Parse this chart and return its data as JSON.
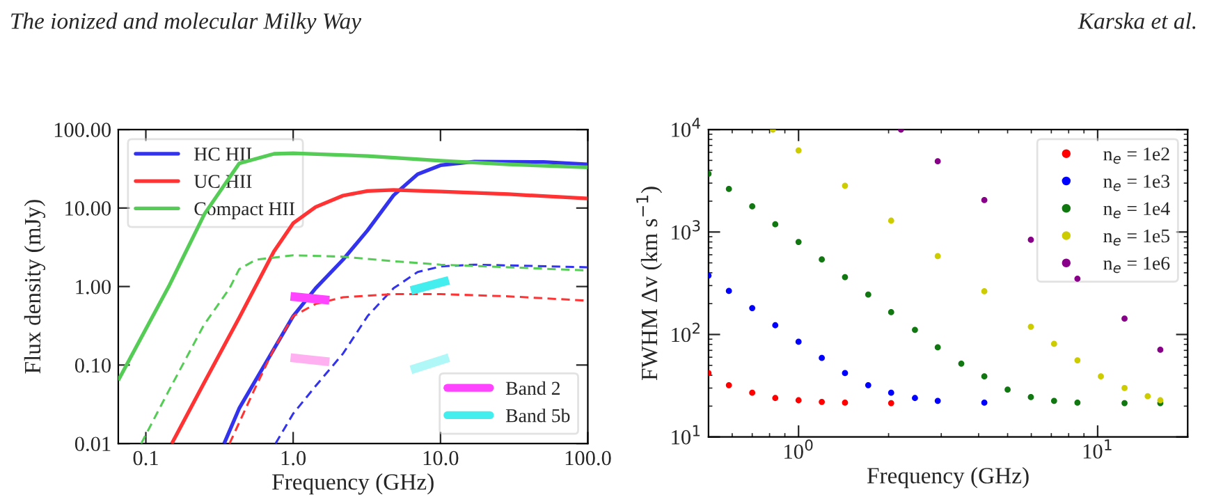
{
  "chart_data": [
    {
      "type": "line",
      "annotations": [
        "The ionized and molecular Milky Way"
      ],
      "xlabel": "Frequency (GHz)",
      "ylabel": "Flux density (mJy)",
      "log": "xy",
      "xlim": [
        0.065,
        100
      ],
      "ylim": [
        0.01,
        100
      ],
      "xticks": [
        {
          "value": 0.1,
          "label": "0.1"
        },
        {
          "value": 1,
          "label": "1.0"
        },
        {
          "value": 10,
          "label": "10.0"
        },
        {
          "value": 100,
          "label": "100.0"
        }
      ],
      "yticks": [
        {
          "value": 0.01,
          "label": "0.01"
        },
        {
          "value": 0.1,
          "label": "0.10"
        },
        {
          "value": 1,
          "label": "1.00"
        },
        {
          "value": 10,
          "label": "10.00"
        },
        {
          "value": 100,
          "label": "100.00"
        }
      ],
      "grid": false,
      "legend": "top left",
      "series": [
        {
          "name": "HC HII",
          "color": "#3333ee",
          "line_style": "solid",
          "x": [
            0.34,
            0.43,
            0.74,
            1.0,
            1.42,
            2.18,
            3.2,
            4.8,
            7.0,
            10,
            17,
            50,
            100
          ],
          "values": [
            0.01,
            0.028,
            0.16,
            0.42,
            0.95,
            2.2,
            5.2,
            14.5,
            27,
            35,
            39,
            38.6,
            36
          ]
        },
        {
          "name": "UC HII",
          "color": "#ff3333",
          "line_style": "solid",
          "x": [
            0.15,
            0.247,
            0.43,
            0.74,
            1.0,
            1.42,
            2.18,
            3.2,
            4.8,
            10,
            29,
            100
          ],
          "values": [
            0.01,
            0.058,
            0.4,
            2.8,
            6.4,
            10.3,
            14.4,
            16.5,
            17,
            16.2,
            15,
            13.2
          ]
        },
        {
          "name": "Compact HII",
          "color": "#55cc55",
          "line_style": "solid",
          "x": [
            0.065,
            0.143,
            0.25,
            0.43,
            0.74,
            1.0,
            3.2,
            10,
            29,
            100
          ],
          "values": [
            0.064,
            1.0,
            8.4,
            37,
            49,
            50,
            46,
            40,
            36,
            33
          ]
        },
        {
          "color": "#3333ee",
          "line_style": "dashed",
          "x": [
            0.76,
            1.0,
            1.42,
            2.18,
            3.2,
            4.8,
            7.0,
            10,
            17,
            100
          ],
          "values": [
            0.01,
            0.024,
            0.054,
            0.14,
            0.42,
            0.95,
            1.53,
            1.8,
            1.9,
            1.76
          ]
        },
        {
          "color": "#ff3333",
          "line_style": "dashed",
          "x": [
            0.37,
            0.56,
            0.74,
            1.0,
            1.42,
            2.18,
            4.8,
            10,
            29,
            100
          ],
          "values": [
            0.01,
            0.054,
            0.16,
            0.42,
            0.6,
            0.73,
            0.8,
            0.8,
            0.75,
            0.66
          ]
        },
        {
          "color": "#55cc55",
          "line_style": "dashed",
          "x": [
            0.093,
            0.143,
            0.247,
            0.37,
            0.43,
            0.56,
            1.0,
            2.18,
            4.8,
            10,
            29,
            100
          ],
          "values": [
            0.01,
            0.047,
            0.32,
            0.95,
            1.66,
            2.2,
            2.5,
            2.4,
            2.1,
            1.9,
            1.76,
            1.6
          ]
        },
        {
          "name": "Band 2",
          "color": "#ff44ff",
          "line_style": "solid",
          "x": [
            0.96,
            1.76
          ],
          "values": [
            0.75,
            0.67
          ]
        },
        {
          "color": "#ffb0f0",
          "line_style": "solid",
          "x": [
            0.96,
            1.76
          ],
          "values": [
            0.124,
            0.11
          ]
        },
        {
          "name": "Band 5b",
          "color": "#44eeee",
          "line_style": "solid",
          "x": [
            6.3,
            11.4
          ],
          "values": [
            0.89,
            1.2
          ]
        },
        {
          "color": "#b0f8f8",
          "line_style": "solid",
          "x": [
            6.3,
            11.4
          ],
          "values": [
            0.087,
            0.124
          ]
        }
      ]
    },
    {
      "type": "scatter",
      "annotations": [
        "Karska et al."
      ],
      "xlabel": "Frequency (GHz)",
      "ylabel": "FWHM Δv (km s$^{−1}$)",
      "log": "xy",
      "xlim": [
        0.5,
        20
      ],
      "ylim": [
        10,
        10000
      ],
      "xticks": [
        {
          "value": 1,
          "label": "10$^{0}$"
        },
        {
          "value": 10,
          "label": "10$^{1}$"
        }
      ],
      "yticks": [
        {
          "value": 10,
          "label": "10$^{1}$"
        },
        {
          "value": 100,
          "label": "10$^{2}$"
        },
        {
          "value": 1000,
          "label": "10$^{3}$"
        },
        {
          "value": 10000,
          "label": "10$^{4}$"
        }
      ],
      "grid": false,
      "legend": "top right",
      "marker": "circle",
      "series": [
        {
          "name": "n$_{e}$ = 1e2",
          "color": "#ff0000",
          "x": [
            0.5,
            0.585,
            0.7,
            0.836,
            1.0,
            1.196,
            1.43,
            2.04
          ],
          "values": [
            42,
            32,
            27,
            24,
            22.8,
            22,
            21.6,
            21.4
          ]
        },
        {
          "name": "n$_{e}$ = 1e3",
          "color": "#0000ff",
          "x": [
            0.5,
            0.585,
            0.7,
            0.836,
            1.0,
            1.196,
            1.43,
            1.71,
            2.04,
            2.45,
            2.92,
            4.18
          ],
          "values": [
            376,
            266,
            181,
            123,
            85,
            59,
            42,
            32,
            27,
            24,
            22.5,
            21.6
          ]
        },
        {
          "name": "n$_{e}$ = 1e4",
          "color": "#117711",
          "x": [
            0.5,
            0.585,
            0.7,
            0.836,
            1.0,
            1.196,
            1.43,
            1.71,
            2.04,
            2.45,
            2.92,
            3.5,
            4.18,
            5.0,
            5.98,
            7.15,
            8.56,
            12.3,
            16.2
          ],
          "values": [
            3700,
            2630,
            1780,
            1190,
            800,
            540,
            363,
            245,
            165,
            111,
            75,
            52,
            39,
            29,
            24.5,
            22.5,
            21.6,
            21.4,
            21.4
          ]
        },
        {
          "name": "n$_{e}$ = 1e5",
          "color": "#cccc00",
          "x": [
            0.821,
            1.0,
            1.43,
            2.04,
            2.92,
            4.18,
            5.98,
            7.15,
            8.56,
            10.25,
            12.3,
            14.7,
            16.2
          ],
          "values": [
            10000,
            6250,
            2830,
            1290,
            582,
            264,
            119,
            81,
            56,
            39,
            30,
            25,
            22.8
          ]
        },
        {
          "name": "n$_{e}$ = 1e6",
          "color": "#880088",
          "x": [
            2.2,
            2.92,
            4.18,
            5.98,
            8.56,
            12.3,
            16.2
          ],
          "values": [
            10000,
            4900,
            2050,
            840,
            350,
            143,
            71
          ]
        }
      ]
    }
  ]
}
